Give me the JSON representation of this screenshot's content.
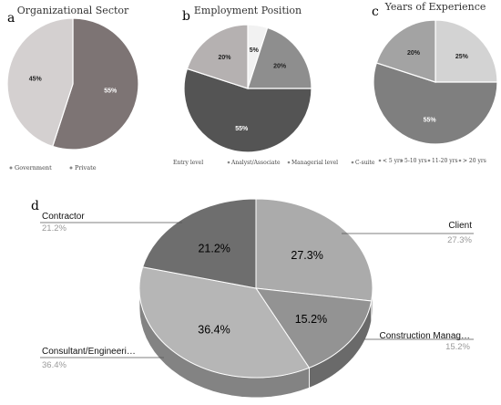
{
  "chart_data": [
    {
      "panel": "a",
      "type": "pie",
      "title": "Organizational Sector",
      "slices": [
        {
          "label": "Government",
          "value": 55,
          "pct_text": "55%",
          "color": "#7d7474"
        },
        {
          "label": "Private",
          "value": 45,
          "pct_text": "45%",
          "color": "#d4d0d0"
        }
      ],
      "legend": [
        "Government",
        "Private"
      ],
      "legend_position": "bottom"
    },
    {
      "panel": "b",
      "type": "pie",
      "title": "Employment Position",
      "slices": [
        {
          "label": "C-suite",
          "value": 5,
          "pct_text": "5%",
          "color": "#f2f2f2"
        },
        {
          "label": "Managerial level",
          "value": 20,
          "pct_text": "20%",
          "color": "#8e8e8e"
        },
        {
          "label": "Analyst/Associate",
          "value": 55,
          "pct_text": "55%",
          "color": "#545454"
        },
        {
          "label": "Entry level",
          "value": 20,
          "pct_text": "20%",
          "color": "#b5b1b1"
        }
      ],
      "legend": [
        "Entry level",
        "Analyst/Associate",
        "Managerial level",
        "C-suite"
      ],
      "legend_position": "bottom"
    },
    {
      "panel": "c",
      "type": "pie",
      "title": "Years of Experience",
      "slices": [
        {
          "label": "> 20 yrs",
          "value": 25,
          "pct_text": "25%",
          "color": "#d3d3d3"
        },
        {
          "label": "11-20 yrs",
          "value": 55,
          "pct_text": "55%",
          "color": "#7f7f7f"
        },
        {
          "label": "5-10 yrs",
          "value": 20,
          "pct_text": "20%",
          "color": "#a3a3a3"
        }
      ],
      "legend": [
        "< 5 yrs",
        "5-10 yrs",
        "11-20 yrs",
        "> 20 yrs"
      ],
      "legend_position": "bottom"
    },
    {
      "panel": "d",
      "type": "pie",
      "title": "",
      "slices": [
        {
          "label": "Client",
          "value": 27.3,
          "pct_text": "27.3%",
          "color": "#ababab"
        },
        {
          "label": "Construction Manag…",
          "value": 15.2,
          "pct_text": "15.2%",
          "color": "#939393"
        },
        {
          "label": "Consultant/Engineeri…",
          "value": 36.4,
          "pct_text": "36.4%",
          "color": "#b6b6b6"
        },
        {
          "label": "Contractor",
          "value": 21.2,
          "pct_text": "21.2%",
          "color": "#6e6e6e"
        }
      ],
      "legend_position": "callouts"
    }
  ]
}
